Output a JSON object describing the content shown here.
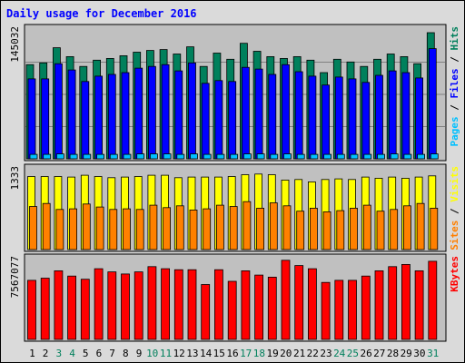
{
  "colors": {
    "hits": "#00805C",
    "files": "#0000FF",
    "pages": "#00C0FF",
    "visits": "#FFFF00",
    "sites": "#FF8000",
    "kbytes": "#FF0000",
    "title": "#0000FF",
    "panel_bg": "#C0C0C0",
    "outer_bg": "#DADADA",
    "weekend_label": "#00805C",
    "weekday_label": "#000000"
  },
  "chart_data": {
    "type": "bar",
    "title": "Daily usage for December 2016",
    "days": [
      "1",
      "2",
      "3",
      "4",
      "5",
      "6",
      "7",
      "8",
      "9",
      "10",
      "11",
      "12",
      "13",
      "14",
      "15",
      "16",
      "17",
      "18",
      "19",
      "20",
      "21",
      "22",
      "23",
      "24",
      "25",
      "26",
      "27",
      "28",
      "29",
      "30",
      "31"
    ],
    "weekend_days": [
      "3",
      "4",
      "10",
      "11",
      "17",
      "18",
      "24",
      "25",
      "31"
    ],
    "panels": [
      {
        "scale_label": "145032",
        "ymax": 145032,
        "legend": [
          "Pages",
          "Files",
          "Hits"
        ],
        "series": [
          {
            "name": "Hits",
            "values": [
              106000,
              108000,
              125000,
              115000,
              104000,
              111000,
              113000,
              116000,
              120000,
              122000,
              123000,
              118000,
              126000,
              104000,
              119000,
              112000,
              130000,
              121000,
              115000,
              113000,
              115000,
              111000,
              97000,
              112000,
              109000,
              104000,
              112000,
              118000,
              115000,
              107000,
              142000
            ]
          },
          {
            "name": "Files",
            "values": [
              90000,
              90000,
              107000,
              100000,
              87000,
              93000,
              95000,
              97000,
              102000,
              104000,
              106000,
              99000,
              108000,
              85000,
              88000,
              87000,
              103000,
              101000,
              95000,
              106000,
              98000,
              93000,
              83000,
              92000,
              90000,
              86000,
              94000,
              99000,
              97000,
              91000,
              124000
            ]
          },
          {
            "name": "Pages",
            "values": [
              5000,
              5000,
              5500,
              5000,
              5000,
              5000,
              5000,
              5000,
              5500,
              5500,
              5500,
              5000,
              5500,
              5000,
              5000,
              5000,
              5500,
              5500,
              5000,
              5500,
              5000,
              5000,
              5000,
              5000,
              5000,
              5000,
              5000,
              5500,
              5000,
              5000,
              5500
            ]
          }
        ]
      },
      {
        "scale_label": "1333",
        "ymax": 1333,
        "legend": [
          "Sites",
          "Visits"
        ],
        "series": [
          {
            "name": "Visits",
            "values": [
              1220,
              1220,
              1220,
              1210,
              1240,
              1220,
              1200,
              1210,
              1220,
              1240,
              1240,
              1200,
              1210,
              1210,
              1210,
              1220,
              1250,
              1260,
              1250,
              1160,
              1170,
              1130,
              1170,
              1180,
              1170,
              1210,
              1190,
              1210,
              1190,
              1210,
              1230
            ]
          },
          {
            "name": "Sites",
            "values": [
              720,
              770,
              670,
              680,
              760,
              710,
              670,
              680,
              670,
              740,
              700,
              730,
              660,
              680,
              740,
              720,
              800,
              690,
              780,
              730,
              640,
              690,
              630,
              650,
              690,
              740,
              640,
              670,
              730,
              770,
              690
            ]
          }
        ]
      },
      {
        "scale_label": "7567077",
        "ymax": 7567077,
        "legend": [
          "KBytes"
        ],
        "series": [
          {
            "name": "KBytes",
            "values": [
              5600000,
              5800000,
              6500000,
              6000000,
              5700000,
              6700000,
              6400000,
              6200000,
              6400000,
              6900000,
              6700000,
              6600000,
              6600000,
              5200000,
              6600000,
              5500000,
              6500000,
              6100000,
              5900000,
              7500000,
              7000000,
              6700000,
              5400000,
              5600000,
              5600000,
              6000000,
              6500000,
              6900000,
              7100000,
              6500000,
              7400000
            ]
          }
        ]
      }
    ]
  }
}
